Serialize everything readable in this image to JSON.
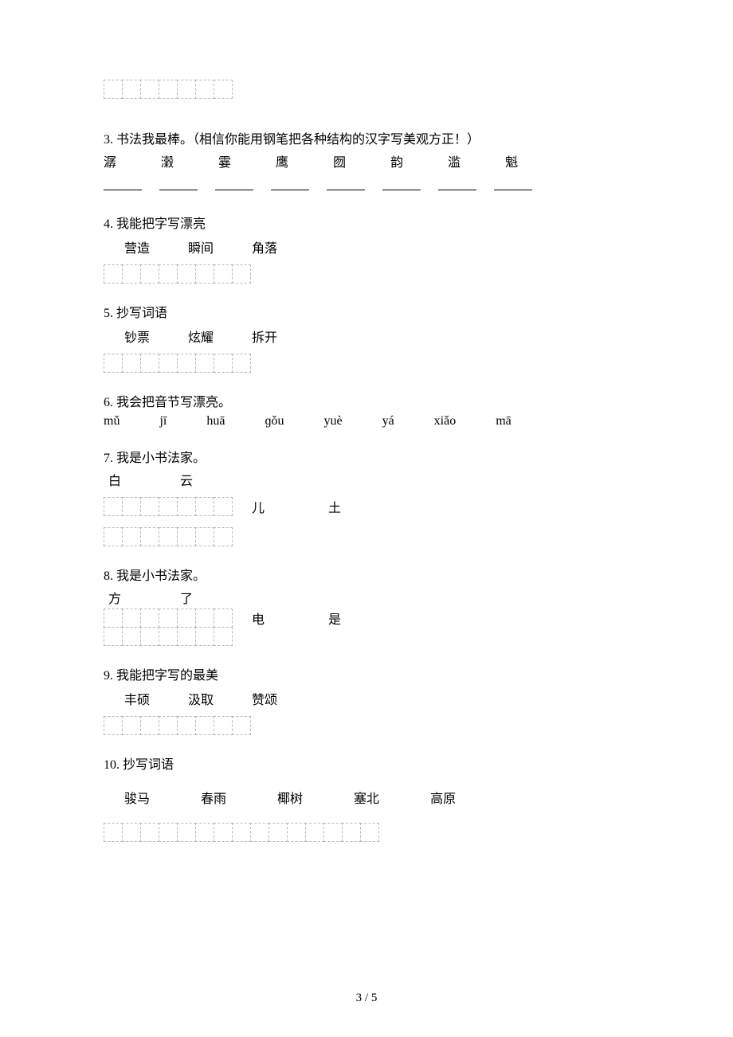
{
  "q3": {
    "title": "3. 书法我最棒。（相信你能用钢笔把各种结构的汉字写美观方正！）",
    "chars": [
      "潺",
      "瀔",
      "霎",
      "鹰",
      "囫",
      "韵",
      "滥",
      "魁"
    ]
  },
  "q4": {
    "title": "4. 我能把字写漂亮",
    "words": [
      "营造",
      "瞬间",
      "角落"
    ],
    "cells": 8
  },
  "q5": {
    "title": "5. 抄写词语",
    "words": [
      "钞票",
      "炫耀",
      "拆开"
    ],
    "cells": 8
  },
  "q6": {
    "title": "6. 我会把音节写漂亮。",
    "pinyin": [
      "mǔ",
      "jī",
      "huā",
      "ɡǒu",
      "yuè",
      "yá",
      "xiǎo",
      "mā"
    ]
  },
  "q7": {
    "title": "7. 我是小书法家。",
    "top": [
      "白",
      "云"
    ],
    "row1_end": [
      "儿",
      "土"
    ],
    "cells": 7
  },
  "q8": {
    "title": "8. 我是小书法家。",
    "top": [
      "方",
      "了"
    ],
    "row1_end": [
      "电",
      "是"
    ],
    "cells": 7
  },
  "q9": {
    "title": "9. 我能把字写的最美",
    "words": [
      "丰硕",
      "汲取",
      "赞颂"
    ],
    "cells": 8
  },
  "q10": {
    "title": "10. 抄写词语",
    "words": [
      "骏马",
      "春雨",
      "椰树",
      "塞北",
      "高原"
    ],
    "cells": 15
  },
  "footer": "3 / 5",
  "top_cells": 7
}
